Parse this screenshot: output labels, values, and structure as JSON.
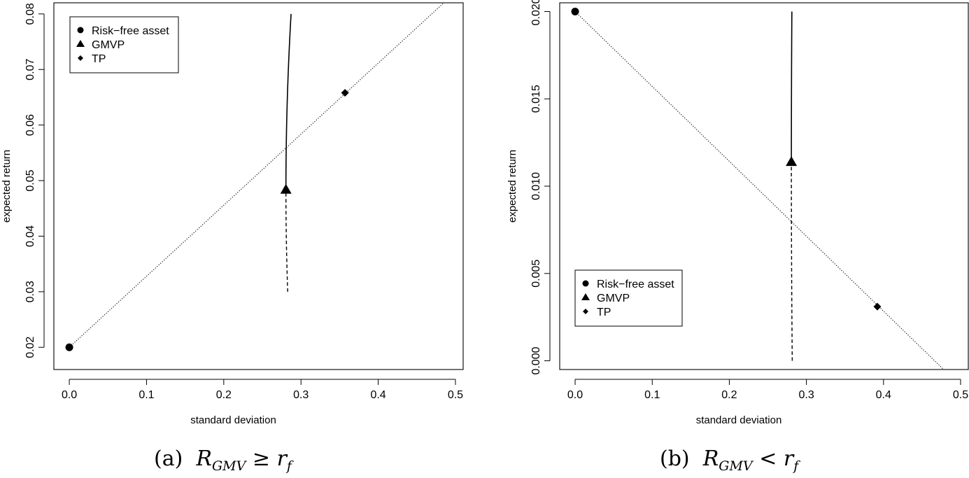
{
  "chart_data": [
    {
      "type": "line",
      "caption": "(a)",
      "caption_math": {
        "R": "R",
        "R_sub": "GMV",
        "op": "≥",
        "r": "r",
        "r_sub": "f"
      },
      "xlabel": "standard deviation",
      "ylabel": "expected return",
      "xlim": [
        -0.02,
        0.51
      ],
      "ylim": [
        0.016,
        0.082
      ],
      "xticks": [
        0.0,
        0.1,
        0.2,
        0.3,
        0.4,
        0.5
      ],
      "xtick_labels": [
        "0.0",
        "0.1",
        "0.2",
        "0.3",
        "0.4",
        "0.5"
      ],
      "yticks": [
        0.02,
        0.03,
        0.04,
        0.05,
        0.06,
        0.07,
        0.08
      ],
      "ytick_labels": [
        "0.02",
        "0.03",
        "0.04",
        "0.05",
        "0.06",
        "0.07",
        "0.08"
      ],
      "grid": false,
      "legend": {
        "position": "top-left",
        "entries": [
          {
            "label": "Risk−free asset",
            "marker": "circle"
          },
          {
            "label": "GMVP",
            "marker": "triangle"
          },
          {
            "label": "TP",
            "marker": "diamond"
          }
        ]
      },
      "frontier": {
        "gmvp_sd": 0.2805,
        "gmvp_ret": 0.04839,
        "a": 3.785,
        "y_min": 0.03,
        "y_max": 0.08
      },
      "points": {
        "risk_free": {
          "x": 0.0,
          "y": 0.02
        },
        "gmvp": {
          "x": 0.2805,
          "y": 0.0484
        },
        "tp": {
          "x": 0.357,
          "y": 0.0658
        }
      },
      "capital_market_line": {
        "from": {
          "x": 0.0,
          "y": 0.02
        },
        "to": {
          "x": 0.51,
          "y": 0.0852
        }
      },
      "series": [
        {
          "style": "solid"
        },
        {
          "style": "dashed"
        },
        {
          "style": "dotted"
        }
      ]
    },
    {
      "type": "line",
      "caption": "(b)",
      "caption_math": {
        "R": "R",
        "R_sub": "GMV",
        "op": "<",
        "r": "r",
        "r_sub": "f"
      },
      "xlabel": "standard deviation",
      "ylabel": "expected return",
      "xlim": [
        -0.02,
        0.51
      ],
      "ylim": [
        -0.0005,
        0.0205
      ],
      "xticks": [
        0.0,
        0.1,
        0.2,
        0.3,
        0.4,
        0.5
      ],
      "xtick_labels": [
        "0.0",
        "0.1",
        "0.2",
        "0.3",
        "0.4",
        "0.5"
      ],
      "yticks": [
        0.0,
        0.005,
        0.01,
        0.015,
        0.02
      ],
      "ytick_labels": [
        "0.000",
        "0.005",
        "0.010",
        "0.015",
        "0.020"
      ],
      "grid": false,
      "legend": {
        "position": "bottom-left",
        "entries": [
          {
            "label": "Risk−free asset",
            "marker": "circle"
          },
          {
            "label": "GMVP",
            "marker": "triangle"
          },
          {
            "label": "TP",
            "marker": "diamond"
          }
        ]
      },
      "frontier": {
        "gmvp_sd": 0.2805,
        "gmvp_ret": 0.01137,
        "a": 4.89,
        "y_min": 0.0,
        "y_max": 0.02
      },
      "points": {
        "risk_free": {
          "x": 0.0,
          "y": 0.02
        },
        "gmvp": {
          "x": 0.2805,
          "y": 0.0114
        },
        "tp": {
          "x": 0.392,
          "y": 0.0031
        }
      },
      "capital_market_line": {
        "from": {
          "x": 0.0,
          "y": 0.02
        },
        "to": {
          "x": 0.478,
          "y": -0.0005
        }
      },
      "series": [
        {
          "style": "solid"
        },
        {
          "style": "dashed"
        },
        {
          "style": "dotted"
        }
      ]
    }
  ]
}
